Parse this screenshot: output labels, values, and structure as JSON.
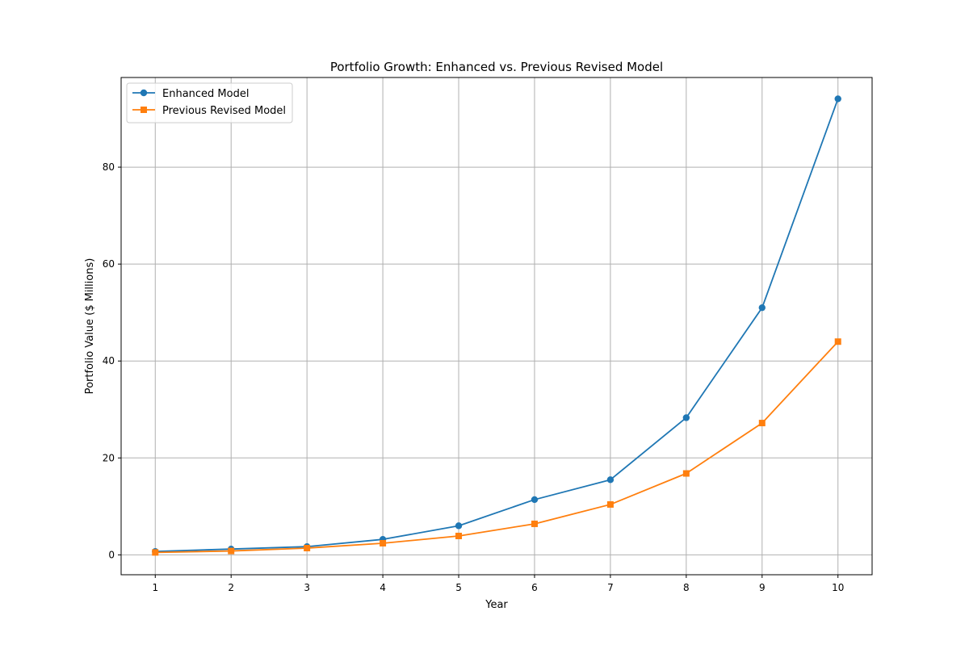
{
  "chart_data": {
    "type": "line",
    "title": "Portfolio Growth: Enhanced vs. Previous Revised Model",
    "xlabel": "Year",
    "ylabel": "Portfolio Value ($ Millions)",
    "x": [
      1,
      2,
      3,
      4,
      5,
      6,
      7,
      8,
      9,
      10
    ],
    "x_ticks": [
      "1",
      "2",
      "3",
      "4",
      "5",
      "6",
      "7",
      "8",
      "9",
      "10"
    ],
    "y_ticks": [
      "0",
      "20",
      "40",
      "60",
      "80"
    ],
    "xlim": [
      0.55,
      10.45
    ],
    "ylim": [
      -4.1,
      98.5
    ],
    "grid": true,
    "legend_position": "upper left",
    "series": [
      {
        "name": "Enhanced Model",
        "color": "#1f77b4",
        "marker": "circle",
        "values": [
          0.7,
          1.2,
          1.7,
          3.2,
          6.0,
          11.4,
          15.5,
          28.3,
          51.0,
          94.1
        ]
      },
      {
        "name": "Previous Revised Model",
        "color": "#ff7f0e",
        "marker": "square",
        "values": [
          0.5,
          0.8,
          1.4,
          2.4,
          3.9,
          6.4,
          10.4,
          16.8,
          27.2,
          44.0
        ]
      }
    ]
  }
}
